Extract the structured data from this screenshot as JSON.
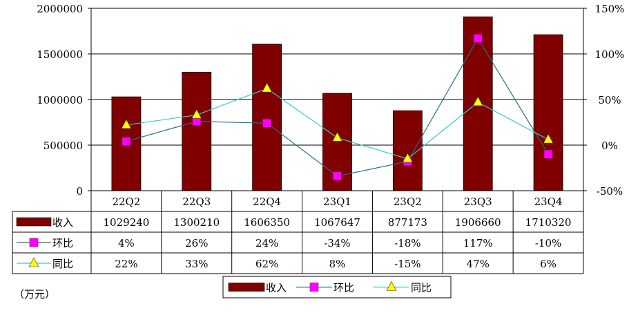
{
  "chart_data": {
    "type": "bar",
    "categories": [
      "22Q2",
      "22Q3",
      "22Q4",
      "23Q1",
      "23Q2",
      "23Q3",
      "23Q4"
    ],
    "series": [
      {
        "name": "收入",
        "kind": "bar",
        "axis": "left",
        "color": "#800000",
        "values": [
          1029240,
          1300210,
          1606350,
          1067647,
          877173,
          1906660,
          1710320
        ],
        "labels": [
          "1029240",
          "1300210",
          "1606350",
          "1067647",
          "877173",
          "1906660",
          "1710320"
        ]
      },
      {
        "name": "环比",
        "kind": "line",
        "marker": "square",
        "axis": "right",
        "color": "#ff00ff",
        "line_color": "#1f6f8b",
        "values": [
          4,
          26,
          24,
          -34,
          -18,
          117,
          -10
        ],
        "labels": [
          "4%",
          "26%",
          "24%",
          "-34%",
          "-18%",
          "117%",
          "-10%"
        ]
      },
      {
        "name": "同比",
        "kind": "line",
        "marker": "triangle",
        "axis": "right",
        "color": "#ffff00",
        "line_color": "#33cccc",
        "values": [
          22,
          33,
          62,
          8,
          -15,
          47,
          6
        ],
        "labels": [
          "22%",
          "33%",
          "62%",
          "8%",
          "-15%",
          "47%",
          "6%"
        ]
      }
    ],
    "y_left": {
      "min": 0,
      "max": 2000000,
      "ticks": [
        "0",
        "500000",
        "1000000",
        "1500000",
        "2000000"
      ]
    },
    "y_right": {
      "min": -50,
      "max": 150,
      "ticks": [
        "-50%",
        "0%",
        "50%",
        "100%",
        "150%"
      ]
    },
    "grid": true,
    "legend": "bottom-center",
    "unit_note": "（万元）"
  }
}
